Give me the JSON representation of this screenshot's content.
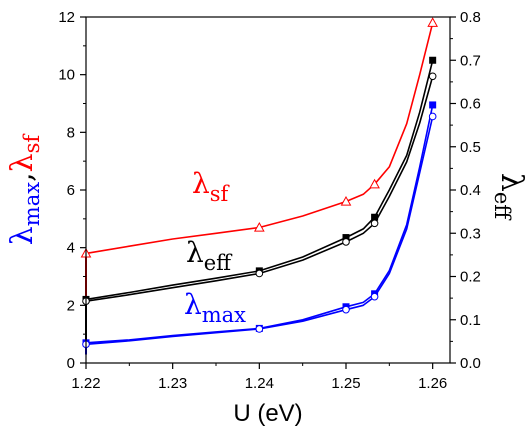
{
  "chart_data": {
    "type": "line",
    "xlabel": "U (eV)",
    "x_ticks": [
      "1.22",
      "1.23",
      "1.24",
      "1.25",
      "1.26"
    ],
    "xlim": [
      1.22,
      1.262
    ],
    "y_left": {
      "lim": [
        0,
        12
      ],
      "ticks": [
        "0",
        "2",
        "4",
        "6",
        "8",
        "10",
        "12"
      ],
      "label": {
        "l1": "λ",
        "s1": "max",
        "sep": ",",
        "l2": "λ",
        "s2": "sf"
      },
      "label_colors": {
        "max": "#0000ff",
        "sep": "#000000",
        "sf": "#ff0000"
      }
    },
    "y_right": {
      "lim": [
        0,
        0.8
      ],
      "ticks": [
        "0.0",
        "0.1",
        "0.2",
        "0.3",
        "0.4",
        "0.5",
        "0.6",
        "0.7",
        "0.8"
      ],
      "label": {
        "l": "λ",
        "s": "eff"
      }
    },
    "series": [
      {
        "axis": "left",
        "color": "#ff0000",
        "marker": "triangle-open",
        "label": {
          "l": "λ",
          "s": "sf"
        },
        "markers": [
          [
            1.22,
            3.8
          ],
          [
            1.24,
            4.7
          ],
          [
            1.25,
            5.6
          ],
          [
            1.2533,
            6.2
          ],
          [
            1.26,
            11.8
          ]
        ],
        "curve": [
          [
            1.22,
            3.8
          ],
          [
            1.225,
            4.05
          ],
          [
            1.23,
            4.3
          ],
          [
            1.235,
            4.5
          ],
          [
            1.24,
            4.7
          ],
          [
            1.245,
            5.1
          ],
          [
            1.25,
            5.6
          ],
          [
            1.252,
            5.85
          ],
          [
            1.2533,
            6.2
          ],
          [
            1.255,
            6.8
          ],
          [
            1.257,
            8.3
          ],
          [
            1.2585,
            10.0
          ],
          [
            1.26,
            11.8
          ]
        ]
      },
      {
        "axis": "right",
        "color": "#000000",
        "marker": "square-filled",
        "label": {
          "l": "λ",
          "s": "eff"
        },
        "markers": [
          [
            1.22,
            0.147
          ],
          [
            1.24,
            0.213
          ],
          [
            1.25,
            0.29
          ],
          [
            1.2533,
            0.337
          ],
          [
            1.26,
            0.7
          ]
        ],
        "curve": [
          [
            1.22,
            0.147
          ],
          [
            1.225,
            0.163
          ],
          [
            1.23,
            0.18
          ],
          [
            1.235,
            0.196
          ],
          [
            1.24,
            0.213
          ],
          [
            1.245,
            0.245
          ],
          [
            1.25,
            0.29
          ],
          [
            1.252,
            0.31
          ],
          [
            1.2533,
            0.337
          ],
          [
            1.255,
            0.4
          ],
          [
            1.257,
            0.48
          ],
          [
            1.2585,
            0.58
          ],
          [
            1.26,
            0.7
          ]
        ]
      },
      {
        "axis": "right",
        "color": "#000000",
        "marker": "circle-open",
        "markers": [
          [
            1.22,
            0.143
          ],
          [
            1.24,
            0.207
          ],
          [
            1.25,
            0.28
          ],
          [
            1.2533,
            0.323
          ],
          [
            1.26,
            0.663
          ]
        ],
        "curve": [
          [
            1.22,
            0.143
          ],
          [
            1.225,
            0.158
          ],
          [
            1.23,
            0.174
          ],
          [
            1.235,
            0.19
          ],
          [
            1.24,
            0.207
          ],
          [
            1.245,
            0.238
          ],
          [
            1.25,
            0.28
          ],
          [
            1.252,
            0.3
          ],
          [
            1.2533,
            0.323
          ],
          [
            1.255,
            0.385
          ],
          [
            1.257,
            0.465
          ],
          [
            1.2585,
            0.555
          ],
          [
            1.26,
            0.663
          ]
        ]
      },
      {
        "axis": "left",
        "color": "#0000ff",
        "marker": "square-filled",
        "label": {
          "l": "λ",
          "s": "max"
        },
        "markers": [
          [
            1.22,
            0.7
          ],
          [
            1.24,
            1.2
          ],
          [
            1.25,
            1.95
          ],
          [
            1.2533,
            2.4
          ],
          [
            1.26,
            8.95
          ]
        ],
        "curve": [
          [
            1.22,
            0.7
          ],
          [
            1.225,
            0.8
          ],
          [
            1.23,
            0.95
          ],
          [
            1.235,
            1.08
          ],
          [
            1.24,
            1.2
          ],
          [
            1.245,
            1.5
          ],
          [
            1.25,
            1.95
          ],
          [
            1.252,
            2.1
          ],
          [
            1.2533,
            2.4
          ],
          [
            1.255,
            3.2
          ],
          [
            1.257,
            4.8
          ],
          [
            1.2585,
            6.8
          ],
          [
            1.26,
            8.95
          ]
        ]
      },
      {
        "axis": "left",
        "color": "#0000ff",
        "marker": "circle-open",
        "markers": [
          [
            1.22,
            0.65
          ],
          [
            1.24,
            1.18
          ],
          [
            1.25,
            1.85
          ],
          [
            1.2533,
            2.3
          ],
          [
            1.26,
            8.55
          ]
        ],
        "curve": [
          [
            1.22,
            0.65
          ],
          [
            1.225,
            0.77
          ],
          [
            1.23,
            0.92
          ],
          [
            1.235,
            1.05
          ],
          [
            1.24,
            1.18
          ],
          [
            1.245,
            1.45
          ],
          [
            1.25,
            1.85
          ],
          [
            1.252,
            2.0
          ],
          [
            1.2533,
            2.3
          ],
          [
            1.255,
            3.1
          ],
          [
            1.257,
            4.65
          ],
          [
            1.2585,
            6.6
          ],
          [
            1.26,
            8.55
          ]
        ]
      }
    ],
    "vertical_segments": [
      {
        "axis": "left",
        "x": 1.22,
        "y": [
          0.3,
          3.9
        ],
        "color": "#ff0000"
      },
      {
        "axis": "left",
        "x": 1.22,
        "y": [
          0.3,
          2.3
        ],
        "color": "#000000"
      },
      {
        "axis": "left",
        "x": 1.22,
        "y": [
          0.3,
          0.75
        ],
        "color": "#0000ff"
      }
    ]
  }
}
